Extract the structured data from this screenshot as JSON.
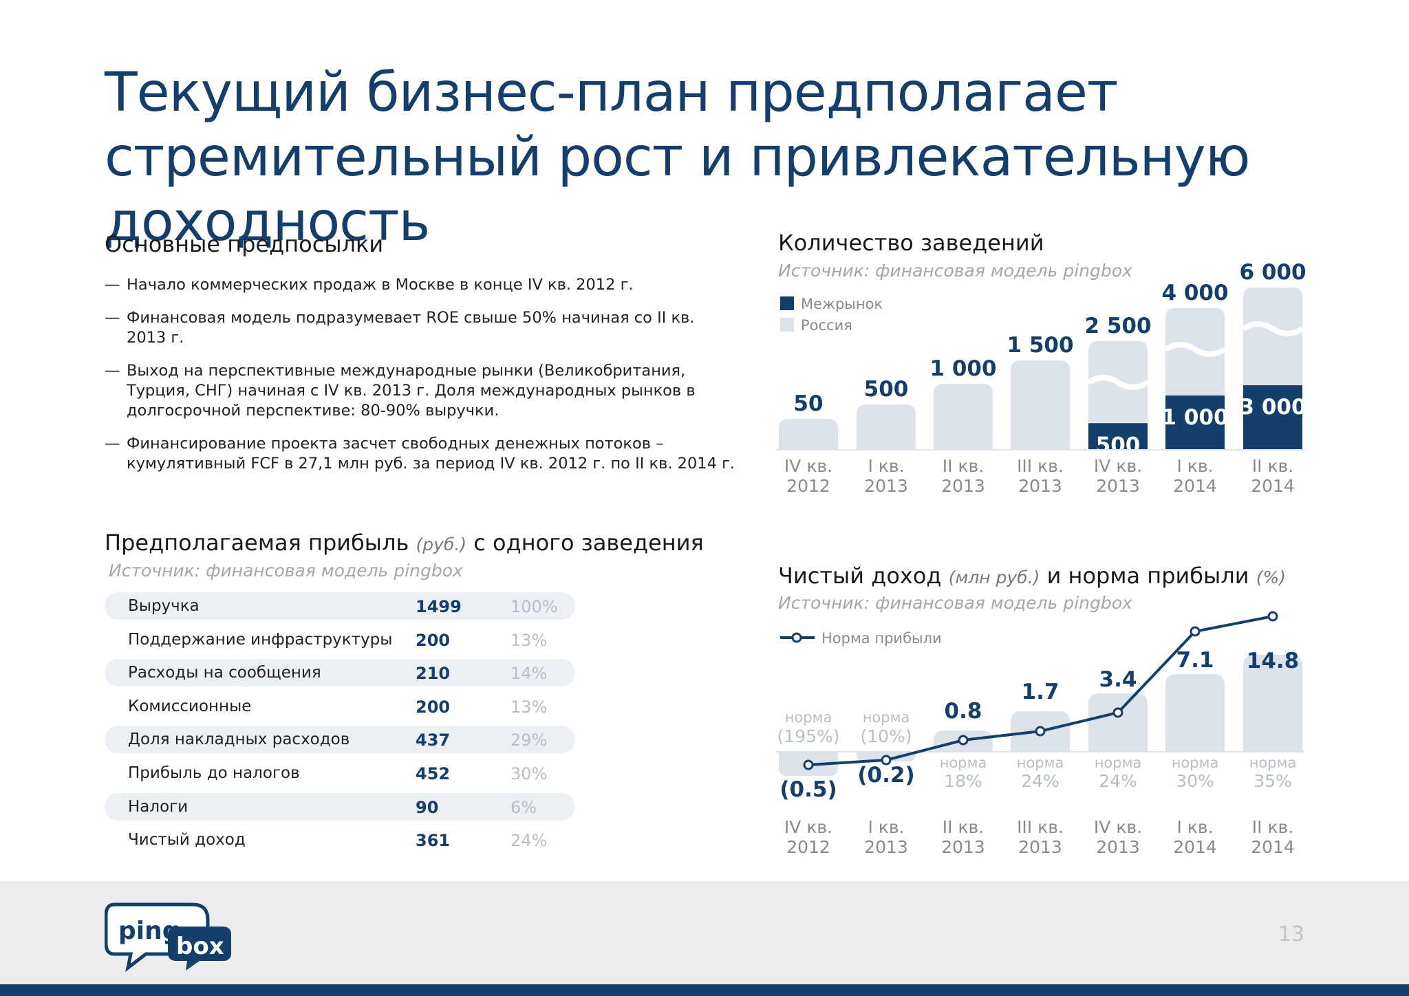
{
  "title": "Текущий бизнес-план предполагает стремительный рост и привлекательную доходность",
  "premises": {
    "heading": "Основные предпосылки",
    "items": [
      "Начало коммерческих продаж в Москве в конце IV кв. 2012 г.",
      "Финансовая модель подразумевает ROE свыше 50% начиная со II кв. 2013 г.",
      "Выход на перспективные международные рынки (Великобритания, Турция, СНГ) начиная с IV кв. 2013 г. Доля международных рынков в долгосрочной перспективе: 80-90% выручки.",
      "Финансирование проекта засчет свободных денежных потоков – кумулятивный FCF в 27,1 млн руб. за период IV кв. 2012 г. по II кв. 2014 г."
    ]
  },
  "profit": {
    "heading_part1": "Предполагаемая прибыль",
    "heading_unit": "(руб.)",
    "heading_part2": "с одного заведения",
    "source": "Источник: финансовая модель pingbox",
    "rows": [
      {
        "label": "Выручка",
        "value": "1499",
        "pct": "100%"
      },
      {
        "label": "Поддержание инфраструктуры",
        "value": "200",
        "pct": "13%"
      },
      {
        "label": "Расходы на сообщения",
        "value": "210",
        "pct": "14%"
      },
      {
        "label": "Комиссионные",
        "value": "200",
        "pct": "13%"
      },
      {
        "label": "Доля накладных расходов",
        "value": "437",
        "pct": "29%"
      },
      {
        "label": "Прибыль до налогов",
        "value": "452",
        "pct": "30%"
      },
      {
        "label": "Налоги",
        "value": "90",
        "pct": "6%"
      },
      {
        "label": "Чистый доход",
        "value": "361",
        "pct": "24%"
      }
    ]
  },
  "colors": {
    "navy": "#143e6c",
    "light_bar": "#dde3eb",
    "muted_text": "#a6a6a6"
  },
  "chart_data": [
    {
      "type": "bar",
      "title": "Количество заведений",
      "source": "Источник: финансовая модель pingbox",
      "legend": [
        "Межрынок",
        "Россия"
      ],
      "categories": [
        "IV кв.\n2012",
        "I кв.\n2013",
        "II кв.\n2013",
        "III кв.\n2013",
        "IV кв.\n2013",
        "I кв.\n2014",
        "II кв.\n2014"
      ],
      "category_lines": [
        [
          "IV кв.",
          "2012"
        ],
        [
          "I кв.",
          "2013"
        ],
        [
          "II кв.",
          "2013"
        ],
        [
          "III кв.",
          "2013"
        ],
        [
          "IV кв.",
          "2013"
        ],
        [
          "I кв.",
          "2014"
        ],
        [
          "II кв.",
          "2014"
        ]
      ],
      "series": [
        {
          "name": "Межрынок",
          "values": [
            0,
            0,
            0,
            0,
            500,
            1000,
            3000
          ]
        },
        {
          "name": "Россия",
          "values": [
            50,
            500,
            1000,
            1500,
            2000,
            3000,
            3000
          ]
        }
      ],
      "totals": [
        50,
        500,
        1000,
        1500,
        2500,
        4000,
        6000
      ],
      "total_labels": [
        "50",
        "500",
        "1 000",
        "1 500",
        "2 500",
        "4 000",
        "6 000"
      ],
      "inter_labels": [
        "",
        "",
        "",
        "",
        "500",
        "1 000",
        "3 000"
      ],
      "broken_axis": [
        false,
        false,
        false,
        false,
        true,
        true,
        true
      ]
    },
    {
      "type": "bar+line",
      "title_part1": "Чистый доход",
      "title_unit1": "(млн руб.)",
      "title_part2": "и норма прибыли",
      "title_unit2": "(%)",
      "source": "Источник: финансовая модель pingbox",
      "legend": [
        "Норма прибыли"
      ],
      "categories": [
        "IV кв.\n2012",
        "I кв.\n2013",
        "II кв.\n2013",
        "III кв.\n2013",
        "IV кв.\n2013",
        "I кв.\n2014",
        "II кв.\n2014"
      ],
      "category_lines": [
        [
          "IV кв.",
          "2012"
        ],
        [
          "I кв.",
          "2013"
        ],
        [
          "II кв.",
          "2013"
        ],
        [
          "III кв.",
          "2013"
        ],
        [
          "IV кв.",
          "2013"
        ],
        [
          "I кв.",
          "2014"
        ],
        [
          "II кв.",
          "2014"
        ]
      ],
      "net_income": [
        -0.5,
        -0.2,
        0.8,
        1.7,
        3.4,
        7.1,
        14.8
      ],
      "net_income_labels": [
        "(0.5)",
        "(0.2)",
        "0.8",
        "1.7",
        "3.4",
        "7.1",
        "14.8"
      ],
      "margin_word": "норма",
      "margin_labels": [
        "(195%)",
        "(10%)",
        "18%",
        "24%",
        "24%",
        "30%",
        "35%"
      ],
      "margin_line": [
        -195,
        -10,
        18,
        24,
        24,
        30,
        35
      ]
    }
  ],
  "footer": {
    "logo_text_1": "ping",
    "logo_text_2": "box",
    "page_number": "13"
  }
}
